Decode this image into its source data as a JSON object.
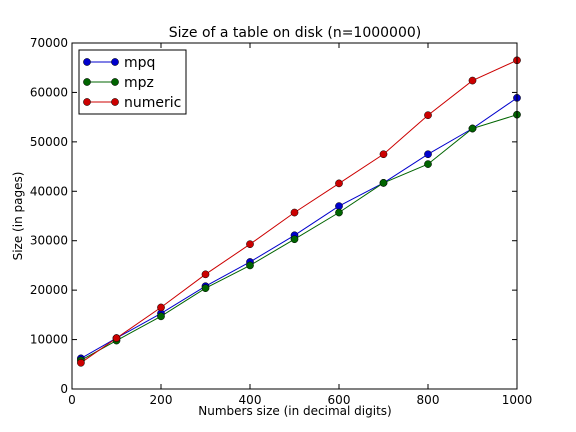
{
  "chart_data": {
    "type": "line",
    "title": "Size of a table on disk (n=1000000)",
    "xlabel": "Numbers size (in decimal digits)",
    "ylabel": "Size (in pages)",
    "xlim": [
      0,
      1000
    ],
    "ylim": [
      0,
      70000
    ],
    "xticks": [
      0,
      200,
      400,
      600,
      800,
      1000
    ],
    "yticks": [
      0,
      10000,
      20000,
      30000,
      40000,
      50000,
      60000,
      70000
    ],
    "grid": false,
    "legend_position": "top-left",
    "x": [
      20,
      100,
      200,
      300,
      400,
      500,
      600,
      700,
      800,
      900,
      1000
    ],
    "series": [
      {
        "name": "mpq",
        "color": "#0000cc",
        "values": [
          6200,
          10300,
          15300,
          20800,
          25700,
          31100,
          37000,
          41700,
          47500,
          52700,
          58900
        ]
      },
      {
        "name": "mpz",
        "color": "#006400",
        "values": [
          5800,
          9800,
          14700,
          20400,
          25000,
          30300,
          35700,
          41700,
          45500,
          52700,
          55500
        ]
      },
      {
        "name": "numeric",
        "color": "#cc0000",
        "values": [
          5300,
          10300,
          16500,
          23200,
          29300,
          35700,
          41600,
          47500,
          55400,
          62400,
          66500
        ]
      }
    ]
  }
}
